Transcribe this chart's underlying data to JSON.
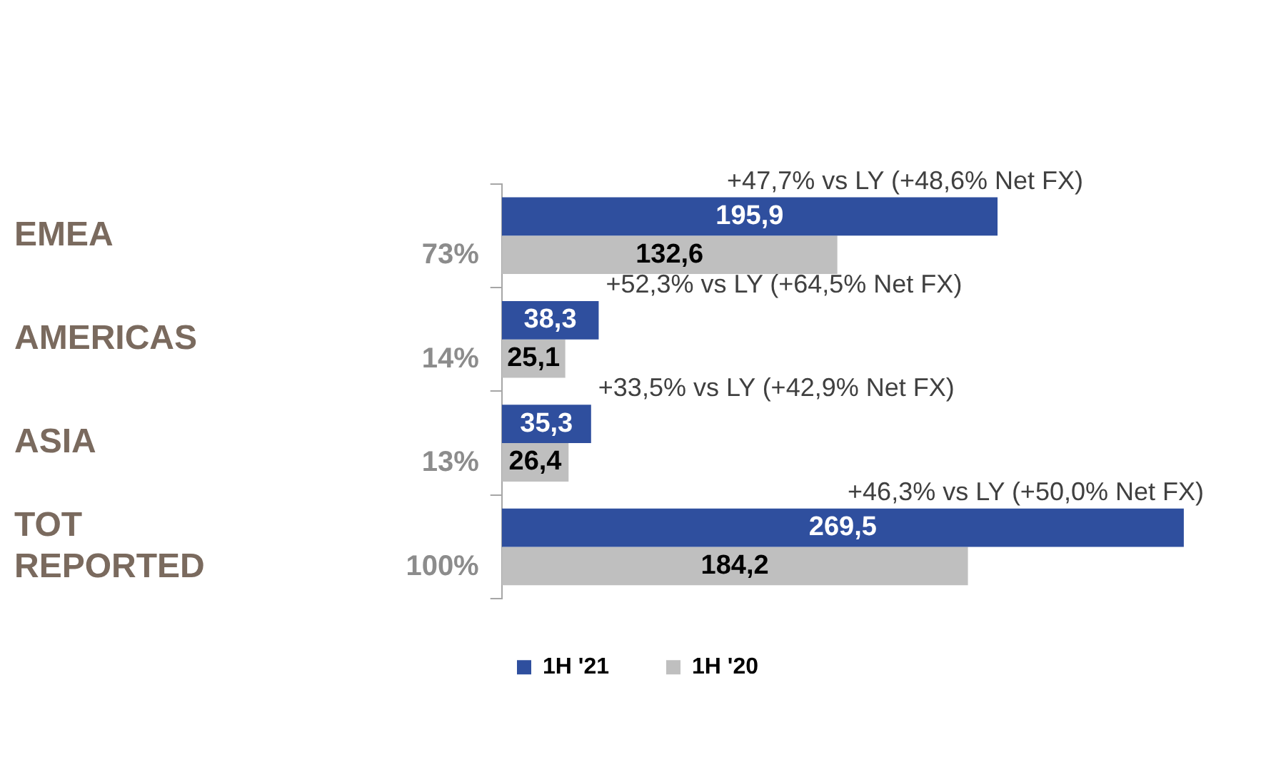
{
  "chart_data": {
    "type": "bar",
    "orientation": "horizontal",
    "categories": [
      "EMEA",
      "AMERICAS",
      "ASIA",
      "TOT REPORTED"
    ],
    "series": [
      {
        "name": "1H '21",
        "color": "#2f4f9e",
        "values": [
          195.9,
          38.3,
          35.3,
          269.5
        ],
        "value_labels": [
          "195,9",
          "38,3",
          "35,3",
          "269,5"
        ]
      },
      {
        "name": "1H '20",
        "color": "#bfbfbf",
        "values": [
          132.6,
          25.1,
          26.4,
          184.2
        ],
        "value_labels": [
          "132,6",
          "25,1",
          "26,4",
          "184,2"
        ]
      }
    ],
    "legend": "bottom",
    "annotations": [
      {
        "text": "+47,7% vs LY (+48,6% Net FX)",
        "x": 195.9,
        "y": "EMEA"
      },
      {
        "text": "+52,3% vs LY (+64,5% Net FX)",
        "x": 38.3,
        "y": "AMERICAS"
      },
      {
        "text": "+33,5% vs LY (+42,9% Net FX)",
        "x": 35.3,
        "y": "ASIA"
      },
      {
        "text": "+46,3% vs LY (+50,0% Net FX)",
        "x": 269.5,
        "y": "TOT REPORTED"
      },
      "73%",
      "14%",
      "13%",
      "100%"
    ]
  }
}
